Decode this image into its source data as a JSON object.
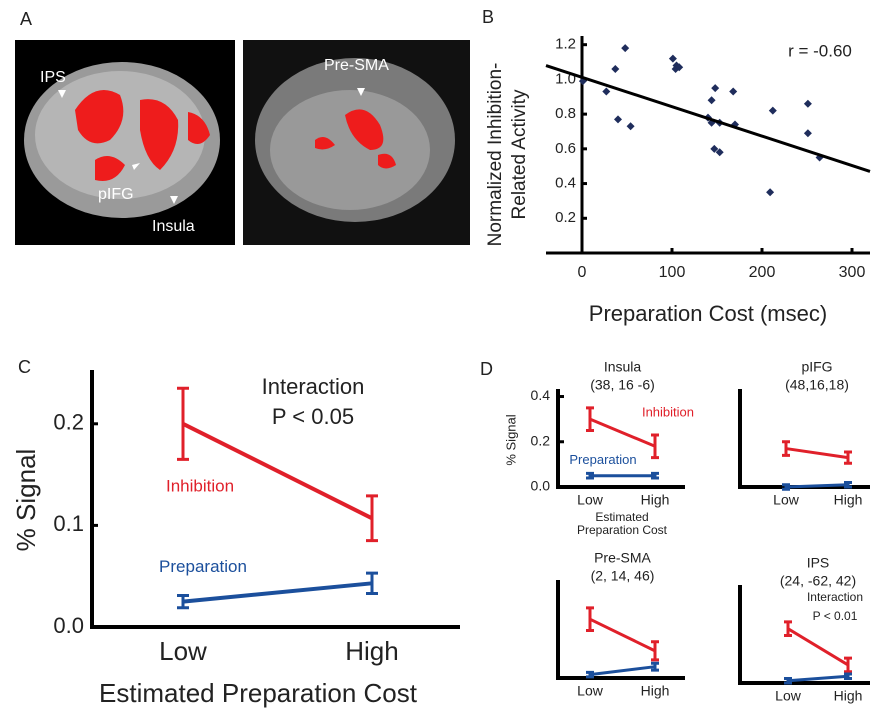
{
  "figure": {
    "panel_labels": [
      "A",
      "B",
      "C",
      "D"
    ],
    "brain_labels": [
      "IPS",
      "pIFG",
      "Insula",
      "Pre-SMA"
    ]
  },
  "chart_data": [
    {
      "type": "scatter",
      "annotation": "r = -0.60",
      "xlabel": "Preparation Cost (msec)",
      "ylabel": [
        "Normalized Inhibition-",
        "Related Activity"
      ],
      "x": [
        1,
        27,
        37,
        48,
        40,
        54,
        101,
        105,
        104,
        108,
        144,
        148,
        140,
        144,
        147,
        153,
        153,
        168,
        170,
        212,
        251,
        251,
        209,
        264
      ],
      "y": [
        0.99,
        0.93,
        1.06,
        1.18,
        0.77,
        0.73,
        1.12,
        1.08,
        1.06,
        1.07,
        0.88,
        0.95,
        0.78,
        0.75,
        0.6,
        0.58,
        0.75,
        0.93,
        0.74,
        0.82,
        0.86,
        0.69,
        0.35,
        0.55
      ],
      "color": "#1f2d5c",
      "trend": {
        "x": [
          -40,
          320
        ],
        "y": [
          1.08,
          0.47
        ]
      },
      "xlim": [
        -40,
        320
      ],
      "xticks": [
        0,
        100,
        200,
        300
      ],
      "ylim": [
        0,
        1.25
      ],
      "yticks": [
        0.2,
        0.4,
        0.6,
        0.8,
        {
          "value": 1,
          "label": "1.0"
        },
        1.2
      ]
    },
    {
      "type": "line",
      "annotation": [
        "Interaction",
        "P < 0.05"
      ],
      "xlabel": "Estimated Preparation Cost",
      "ylabel": "% Signal",
      "categories": [
        "Low",
        "High"
      ],
      "series": [
        {
          "name": "Inhibition",
          "color": "#e0202a",
          "values": [
            0.2,
            0.107
          ],
          "errors": [
            0.035,
            0.022
          ]
        },
        {
          "name": "Preparation",
          "color": "#1b4f9c",
          "values": [
            0.025,
            0.043
          ],
          "errors": [
            0.006,
            0.01
          ]
        }
      ],
      "ylim": [
        0,
        0.25
      ],
      "yticks": [
        {
          "value": 0,
          "label": "0.0"
        },
        0.1,
        0.2
      ]
    },
    {
      "type": "line",
      "title": "Insula",
      "subtitle": "(38, 16 -6)",
      "xlabel": [
        "Estimated",
        "Preparation Cost"
      ],
      "ylabel": "% Signal",
      "categories": [
        "Low",
        "High"
      ],
      "series": [
        {
          "name": "Inhibition",
          "color": "#e0202a",
          "values": [
            0.3,
            0.18
          ],
          "errors": [
            0.05,
            0.05
          ]
        },
        {
          "name": "Preparation",
          "color": "#1b4f9c",
          "values": [
            0.05,
            0.05
          ],
          "errors": [
            0.01,
            0.01
          ]
        }
      ],
      "ylim": [
        0,
        0.42
      ],
      "yticks": [
        {
          "value": 0,
          "label": "0.0"
        },
        0.2,
        0.4
      ]
    },
    {
      "type": "line",
      "title": "pIFG",
      "subtitle": "(48,16,18)",
      "categories": [
        "Low",
        "High"
      ],
      "series": [
        {
          "color": "#e0202a",
          "values": [
            0.17,
            0.13
          ],
          "errors": [
            0.03,
            0.025
          ]
        },
        {
          "color": "#1b4f9c",
          "values": [
            0,
            0.01
          ],
          "errors": [
            0.01,
            0.01
          ]
        }
      ],
      "ylim": [
        0,
        0.42
      ]
    },
    {
      "type": "line",
      "title": "Pre-SMA",
      "subtitle": "(2, 14, 46)",
      "categories": [
        "Low",
        "High"
      ],
      "series": [
        {
          "color": "#e0202a",
          "values": [
            0.26,
            0.12
          ],
          "errors": [
            0.05,
            0.04
          ]
        },
        {
          "color": "#1b4f9c",
          "values": [
            0.015,
            0.05
          ],
          "errors": [
            0.01,
            0.015
          ]
        }
      ],
      "ylim": [
        0,
        0.42
      ]
    },
    {
      "type": "line",
      "title": "IPS",
      "subtitle": "(24, -62, 42)",
      "annotation": [
        "Interaction",
        "P < 0.01"
      ],
      "categories": [
        "Low",
        "High"
      ],
      "series": [
        {
          "color": "#e0202a",
          "values": [
            0.24,
            0.08
          ],
          "errors": [
            0.03,
            0.03
          ]
        },
        {
          "color": "#1b4f9c",
          "values": [
            0.01,
            0.03
          ],
          "errors": [
            0.01,
            0.01
          ]
        }
      ],
      "ylim": [
        0,
        0.42
      ]
    }
  ]
}
